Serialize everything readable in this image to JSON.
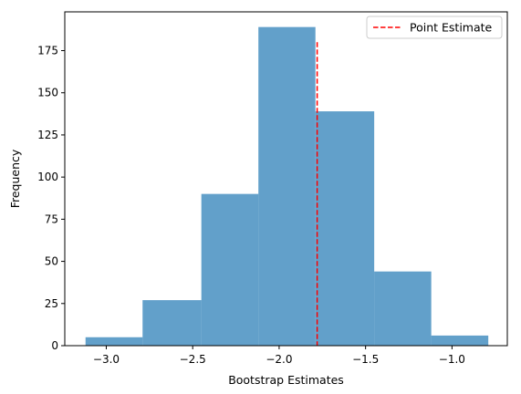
{
  "chart_data": {
    "type": "bar",
    "bins": [
      {
        "start": -3.12,
        "end": -2.79,
        "count": 5
      },
      {
        "start": -2.79,
        "end": -2.45,
        "count": 27
      },
      {
        "start": -2.45,
        "end": -2.12,
        "count": 90
      },
      {
        "start": -2.12,
        "end": -1.79,
        "count": 189
      },
      {
        "start": -1.79,
        "end": -1.45,
        "count": 139
      },
      {
        "start": -1.45,
        "end": -1.12,
        "count": 44
      },
      {
        "start": -1.12,
        "end": -0.79,
        "count": 6
      }
    ],
    "point_estimate": -1.78,
    "point_estimate_line_ymax": 180,
    "xlabel": "Bootstrap Estimates",
    "ylabel": "Frequency",
    "xlim": [
      -3.24,
      -0.68
    ],
    "ylim": [
      0,
      198
    ],
    "xticks": [
      {
        "value": -3.0,
        "label": "−3.0"
      },
      {
        "value": -2.5,
        "label": "−2.5"
      },
      {
        "value": -2.0,
        "label": "−2.0"
      },
      {
        "value": -1.5,
        "label": "−1.5"
      },
      {
        "value": -1.0,
        "label": "−1.0"
      }
    ],
    "yticks": [
      {
        "value": 0,
        "label": "0"
      },
      {
        "value": 25,
        "label": "25"
      },
      {
        "value": 50,
        "label": "50"
      },
      {
        "value": 75,
        "label": "75"
      },
      {
        "value": 100,
        "label": "100"
      },
      {
        "value": 125,
        "label": "125"
      },
      {
        "value": 150,
        "label": "150"
      },
      {
        "value": 175,
        "label": "175"
      }
    ],
    "legend": {
      "label": "Point Estimate",
      "position": "top-right"
    },
    "grid": false,
    "colors": {
      "bars": "#1f77b4",
      "bar_opacity": 0.7,
      "point_estimate": "#ff0000",
      "axes": "#000000"
    }
  }
}
